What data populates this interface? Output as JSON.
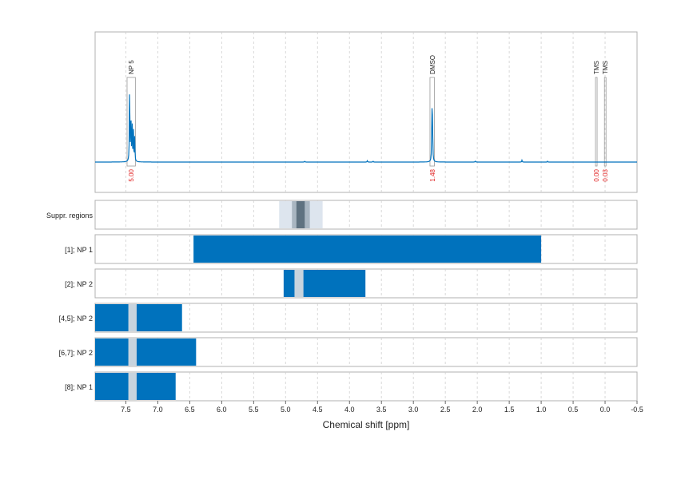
{
  "chart_data": {
    "type": "line",
    "xlabel": "Chemical shift [ppm]",
    "x_axis": {
      "range": [
        7.98,
        -0.5
      ],
      "reversed": true,
      "ticks": [
        7.5,
        7.0,
        6.5,
        6.0,
        5.5,
        5.0,
        4.5,
        4.0,
        3.5,
        3.0,
        2.5,
        2.0,
        1.5,
        1.0,
        0.5,
        0.0,
        -0.5
      ],
      "tick_labels": [
        "7.5",
        "7.0",
        "6.5",
        "6.0",
        "5.5",
        "5.0",
        "4.5",
        "4.0",
        "3.5",
        "3.0",
        "2.5",
        "2.0",
        "1.5",
        "1.0",
        "0.5",
        "0.0",
        "-0.5"
      ]
    },
    "grid": true,
    "spectrum": {
      "color": "#0072bd",
      "peaks": [
        {
          "ppm": 7.44,
          "height": 0.85
        },
        {
          "ppm": 7.42,
          "height": 0.55
        },
        {
          "ppm": 7.4,
          "height": 0.4
        },
        {
          "ppm": 7.38,
          "height": 0.3
        },
        {
          "ppm": 7.36,
          "height": 0.25
        },
        {
          "ppm": 2.71,
          "height": 0.55
        },
        {
          "ppm": 2.7,
          "height": 0.45
        },
        {
          "ppm": 4.7,
          "height": 0.01
        },
        {
          "ppm": 3.72,
          "height": 0.015
        },
        {
          "ppm": 3.63,
          "height": 0.01
        },
        {
          "ppm": 2.03,
          "height": 0.012
        },
        {
          "ppm": 1.3,
          "height": 0.02
        },
        {
          "ppm": 0.9,
          "height": 0.008
        }
      ]
    },
    "integration_regions": [
      {
        "label": "NP 5",
        "value": "5.00",
        "from": 7.48,
        "to": 7.35
      },
      {
        "label": "DMSO",
        "value": "1.48",
        "from": 2.74,
        "to": 2.67
      },
      {
        "label": "TMS",
        "value": "0.00",
        "from": 0.15,
        "to": 0.13
      },
      {
        "label": "TMS",
        "value": "0.03",
        "from": 0.01,
        "to": -0.01
      }
    ],
    "value_color": "#e02020",
    "suppression": {
      "label": "Suppr. regions",
      "bands": [
        {
          "from": 5.1,
          "to": 4.42,
          "shade": "light"
        },
        {
          "from": 4.9,
          "to": 4.62,
          "shade": "medium"
        },
        {
          "from": 4.83,
          "to": 4.7,
          "shade": "dark"
        }
      ]
    },
    "ranges": [
      {
        "label": "[1]; NP 1",
        "from": 6.44,
        "to": 1.0,
        "gaps": []
      },
      {
        "label": "[2]; NP 2",
        "from": 5.03,
        "to": 3.75,
        "gaps": [
          [
            4.86,
            4.72
          ]
        ]
      },
      {
        "label": "[4,5]; NP 2",
        "from": 7.98,
        "to": 6.62,
        "gaps": [
          [
            7.46,
            7.33
          ]
        ]
      },
      {
        "label": "[6,7]; NP 2",
        "from": 7.98,
        "to": 6.4,
        "gaps": [
          [
            7.46,
            7.33
          ]
        ]
      },
      {
        "label": "[8]; NP 1",
        "from": 7.98,
        "to": 6.72,
        "gaps": [
          [
            7.46,
            7.33
          ]
        ]
      }
    ],
    "bar_color": "#0072bd",
    "gap_color": "#c8d4de"
  }
}
